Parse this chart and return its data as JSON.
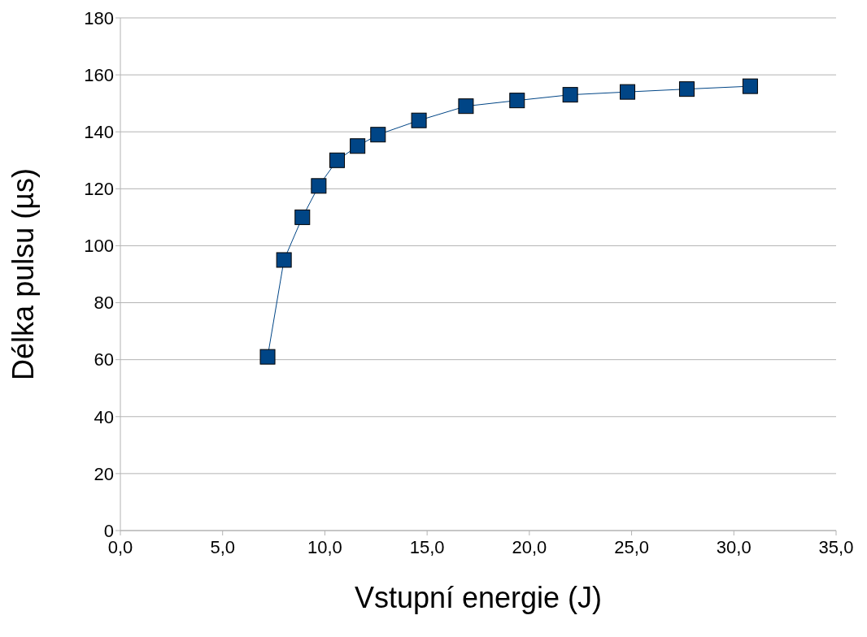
{
  "chart_data": {
    "type": "line",
    "xlabel": "Vstupní energie (J)",
    "ylabel": "Délka pulsu (µs)",
    "x": [
      7.2,
      8.0,
      8.9,
      9.7,
      10.6,
      11.6,
      12.6,
      14.6,
      16.9,
      19.4,
      22.0,
      24.8,
      27.7,
      30.8
    ],
    "series": [
      {
        "color": "#004586",
        "values": [
          61,
          95,
          110,
          121,
          130,
          135,
          139,
          144,
          149,
          151,
          153,
          154,
          155,
          156
        ]
      }
    ],
    "xlim": [
      0,
      35
    ],
    "xticks": [
      {
        "value": 0,
        "label": "0,0"
      },
      {
        "value": 5,
        "label": "5,0"
      },
      {
        "value": 10,
        "label": "10,0"
      },
      {
        "value": 15,
        "label": "15,0"
      },
      {
        "value": 20,
        "label": "20,0"
      },
      {
        "value": 25,
        "label": "25,0"
      },
      {
        "value": 30,
        "label": "30,0"
      },
      {
        "value": 35,
        "label": "35,0"
      }
    ],
    "ylim": [
      0,
      180
    ],
    "yticks": [
      0,
      20,
      40,
      60,
      80,
      100,
      120,
      140,
      160,
      180
    ],
    "grid": "y",
    "marker": "square",
    "line_style": "solid",
    "legend": false
  }
}
